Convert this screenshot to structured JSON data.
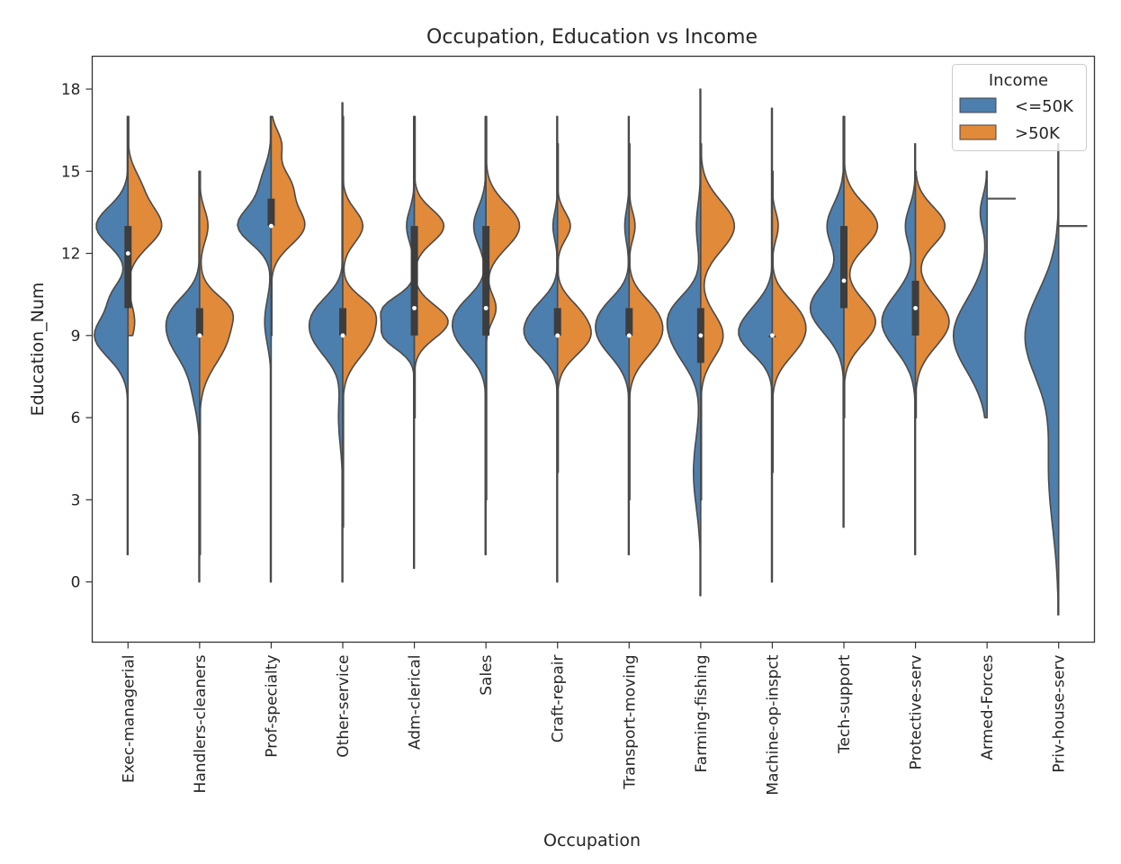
{
  "chart_data": {
    "type": "violin",
    "title": "Occupation, Education vs Income",
    "xlabel": "Occupation",
    "ylabel": "Education_Num",
    "ylim": [
      -2.2,
      19.2
    ],
    "yticks": [
      0,
      3,
      6,
      9,
      12,
      15,
      18
    ],
    "split": true,
    "legend": {
      "title": "Income",
      "placement": "top-right",
      "entries": [
        {
          "label": "<=50K",
          "color": "#4C7FAE"
        },
        {
          "label": ">50K",
          "color": "#E18A3A"
        }
      ]
    },
    "categories": [
      "Exec-managerial",
      "Handlers-cleaners",
      "Prof-specialty",
      "Other-service",
      "Adm-clerical",
      "Sales",
      "Craft-repair",
      "Transport-moving",
      "Farming-fishing",
      "Machine-op-inspct",
      "Tech-support",
      "Protective-serv",
      "Armed-Forces",
      "Priv-house-serv"
    ],
    "series": [
      {
        "name": "<=50K",
        "color": "#4C7FAE",
        "violins": [
          {
            "range": [
              1,
              17
            ],
            "peaks": [
              [
                9,
                1.0,
                0.8
              ],
              [
                13,
                0.95,
                0.7
              ],
              [
                10.5,
                0.35,
                0.5
              ]
            ]
          },
          {
            "range": [
              0,
              15
            ],
            "peaks": [
              [
                9,
                1.0,
                0.9
              ],
              [
                10,
                0.4,
                0.6
              ],
              [
                7,
                0.2,
                0.8
              ]
            ]
          },
          {
            "range": [
              0,
              17
            ],
            "peaks": [
              [
                13,
                1.0,
                0.65
              ],
              [
                14.5,
                0.3,
                0.7
              ],
              [
                9.5,
                0.2,
                0.8
              ]
            ]
          },
          {
            "range": [
              0,
              17.5
            ],
            "peaks": [
              [
                9,
                1.0,
                0.8
              ],
              [
                10,
                0.5,
                0.6
              ],
              [
                6,
                0.15,
                1.0
              ]
            ]
          },
          {
            "range": [
              0.5,
              17
            ],
            "peaks": [
              [
                9,
                0.95,
                0.5
              ],
              [
                10,
                0.9,
                0.45
              ],
              [
                13,
                0.25,
                0.6
              ]
            ]
          },
          {
            "range": [
              1,
              17
            ],
            "peaks": [
              [
                9,
                1.0,
                0.75
              ],
              [
                10,
                0.6,
                0.6
              ],
              [
                13,
                0.45,
                0.7
              ]
            ]
          },
          {
            "range": [
              0,
              17
            ],
            "peaks": [
              [
                9,
                1.0,
                0.7
              ],
              [
                10,
                0.4,
                0.55
              ],
              [
                13,
                0.15,
                0.5
              ]
            ]
          },
          {
            "range": [
              1,
              17
            ],
            "peaks": [
              [
                9,
                1.0,
                0.8
              ],
              [
                10,
                0.45,
                0.6
              ],
              [
                13,
                0.15,
                0.6
              ]
            ]
          },
          {
            "range": [
              -0.5,
              18
            ],
            "peaks": [
              [
                9,
                1.0,
                1.0
              ],
              [
                10,
                0.4,
                0.6
              ],
              [
                4,
                0.25,
                1.3
              ],
              [
                13,
                0.15,
                0.8
              ]
            ]
          },
          {
            "range": [
              0,
              17.3
            ],
            "peaks": [
              [
                9,
                1.0,
                0.7
              ],
              [
                10,
                0.3,
                0.6
              ]
            ]
          },
          {
            "range": [
              2,
              17
            ],
            "peaks": [
              [
                10,
                1.0,
                0.9
              ],
              [
                13,
                0.5,
                0.8
              ]
            ]
          },
          {
            "range": [
              1,
              16
            ],
            "peaks": [
              [
                9.5,
                1.0,
                1.0
              ],
              [
                13,
                0.3,
                0.7
              ]
            ]
          },
          {
            "range": [
              6,
              15
            ],
            "peaks": [
              [
                9,
                1.0,
                1.3
              ],
              [
                13.5,
                0.2,
                0.6
              ]
            ]
          },
          {
            "range": [
              -1.2,
              16
            ],
            "peaks": [
              [
                9,
                1.0,
                1.6
              ],
              [
                4,
                0.3,
                2.0
              ]
            ]
          }
        ]
      },
      {
        "name": ">50K",
        "color": "#E18A3A",
        "violins": [
          {
            "range": [
              9,
              17
            ],
            "peaks": [
              [
                13,
                1.0,
                0.75
              ],
              [
                9.5,
                0.2,
                0.6
              ],
              [
                14.5,
                0.3,
                0.6
              ]
            ]
          },
          {
            "range": [
              1,
              15
            ],
            "peaks": [
              [
                9,
                1.0,
                1.0
              ],
              [
                13,
                0.3,
                0.6
              ],
              [
                10,
                0.5,
                0.5
              ]
            ]
          },
          {
            "range": [
              9,
              17
            ],
            "peaks": [
              [
                13,
                1.0,
                0.7
              ],
              [
                14.5,
                0.55,
                0.6
              ],
              [
                16,
                0.3,
                0.5
              ]
            ]
          },
          {
            "range": [
              2,
              17
            ],
            "peaks": [
              [
                9,
                0.85,
                0.8
              ],
              [
                10,
                0.5,
                0.5
              ],
              [
                13,
                0.6,
                0.6
              ]
            ]
          },
          {
            "range": [
              6,
              17
            ],
            "peaks": [
              [
                9.5,
                0.8,
                0.6
              ],
              [
                13,
                0.7,
                0.6
              ]
            ]
          },
          {
            "range": [
              3,
              17
            ],
            "peaks": [
              [
                13,
                1.0,
                0.8
              ],
              [
                10,
                0.3,
                0.5
              ]
            ]
          },
          {
            "range": [
              4,
              16
            ],
            "peaks": [
              [
                9,
                1.0,
                0.7
              ],
              [
                13,
                0.4,
                0.5
              ],
              [
                10,
                0.3,
                0.5
              ]
            ]
          },
          {
            "range": [
              3,
              16
            ],
            "peaks": [
              [
                9,
                1.0,
                0.8
              ],
              [
                10,
                0.4,
                0.6
              ],
              [
                13,
                0.2,
                0.5
              ]
            ]
          },
          {
            "range": [
              3,
              16
            ],
            "peaks": [
              [
                9,
                0.6,
                0.8
              ],
              [
                13,
                0.9,
                0.9
              ]
            ]
          },
          {
            "range": [
              4,
              15
            ],
            "peaks": [
              [
                9,
                1.0,
                0.8
              ],
              [
                10,
                0.4,
                0.6
              ],
              [
                13,
                0.2,
                0.5
              ]
            ]
          },
          {
            "range": [
              6,
              17
            ],
            "peaks": [
              [
                9.5,
                0.8,
                0.8
              ],
              [
                13,
                0.85,
                0.8
              ]
            ]
          },
          {
            "range": [
              6,
              15
            ],
            "peaks": [
              [
                9.5,
                0.8,
                0.9
              ],
              [
                13,
                0.7,
                0.7
              ]
            ]
          },
          {
            "value": 14
          },
          {
            "value": 13
          }
        ]
      }
    ],
    "box": [
      {
        "q1": 10,
        "median": 12,
        "q3": 13
      },
      {
        "q1": 9,
        "median": 9,
        "q3": 10
      },
      {
        "q1": 13,
        "median": 13,
        "q3": 14
      },
      {
        "q1": 9,
        "median": 9,
        "q3": 10
      },
      {
        "q1": 9,
        "median": 10,
        "q3": 13
      },
      {
        "q1": 9,
        "median": 10,
        "q3": 13
      },
      {
        "q1": 9,
        "median": 9,
        "q3": 10
      },
      {
        "q1": 9,
        "median": 9,
        "q3": 10
      },
      {
        "q1": 8,
        "median": 9,
        "q3": 10
      },
      {
        "q1": 9,
        "median": 9,
        "q3": 9
      },
      {
        "q1": 10,
        "median": 11,
        "q3": 13
      },
      {
        "q1": 9,
        "median": 10,
        "q3": 11
      },
      null,
      null
    ]
  }
}
